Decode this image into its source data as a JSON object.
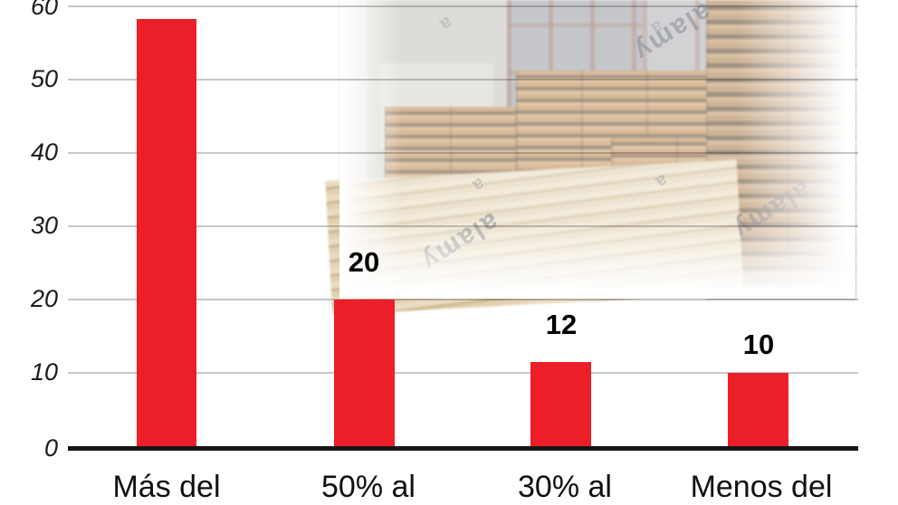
{
  "watermark": {
    "brand": "alamy",
    "mini": "a"
  },
  "colors": {
    "bar": "#ec1e27",
    "axis": "#151515",
    "gridline": "rgba(0,0,0,0.22)",
    "background": "#ffffff"
  },
  "chart_data": {
    "type": "bar",
    "categories": [
      "Más del",
      "50% al",
      "30% al",
      "Menos del"
    ],
    "values": [
      58,
      20,
      12,
      10
    ],
    "data_labels": [
      "",
      "20",
      "12",
      "10"
    ],
    "series_color": "#ec1e27",
    "title": "",
    "xlabel": "",
    "ylabel": "",
    "ylim": [
      0,
      60
    ],
    "yticks": [
      0,
      10,
      20,
      30,
      40,
      50,
      60
    ],
    "ytick_labels_top_down": [
      "60",
      "50",
      "40",
      "30",
      "20",
      "10",
      "0"
    ],
    "grid": true,
    "legend": false,
    "background_image": "lumber-yard-photo-faded"
  }
}
